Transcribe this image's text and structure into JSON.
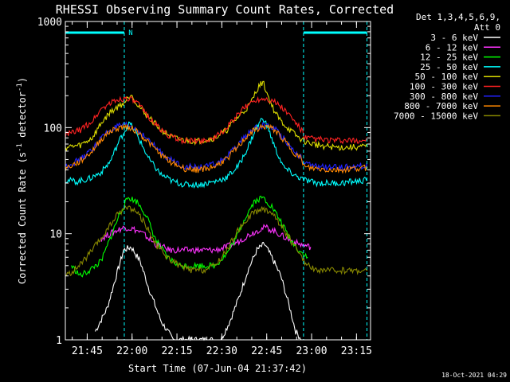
{
  "chart_data": {
    "type": "line",
    "title": "RHESSI Observing Summary Count Rates, Corrected",
    "xlabel": "Start Time (07-Jun-04 21:37:42)",
    "ylabel_parts": [
      "Corrected Count Rate (s",
      "-1",
      " detector",
      "-1",
      ")"
    ],
    "yscale": "log",
    "ylim": [
      1,
      1000
    ],
    "xlim_min": [
      0,
      102
    ],
    "x_ticks": [
      {
        "min": 7.3,
        "label": "21:45"
      },
      {
        "min": 22.3,
        "label": "22:00"
      },
      {
        "min": 37.3,
        "label": "22:15"
      },
      {
        "min": 52.3,
        "label": "22:30"
      },
      {
        "min": 67.3,
        "label": "22:45"
      },
      {
        "min": 82.3,
        "label": "23:00"
      },
      {
        "min": 97.3,
        "label": "23:15"
      }
    ],
    "y_ticks": [
      {
        "value": 1,
        "label": "1"
      },
      {
        "value": 10,
        "label": "10"
      },
      {
        "value": 100,
        "label": "100"
      },
      {
        "value": 1000,
        "label": "1000"
      }
    ],
    "legend_header": [
      "Det 1,3,4,5,6,9,",
      "Att 0"
    ],
    "legend_placement": "right",
    "timestamp": "18-Oct-2021 04:29",
    "flag_bars": [
      {
        "label": "",
        "start": 0,
        "end": 19.7
      },
      {
        "label": "N",
        "start": 19.7,
        "end": 19.7
      },
      {
        "label": "",
        "start": 79.6,
        "end": 100.8
      }
    ],
    "annotation_lines_min": [
      0,
      19.7,
      79.6,
      100.8
    ],
    "series": [
      {
        "name": "3 - 6 keV",
        "color": "#ffffff",
        "x": [
          10,
          14,
          17,
          19.5,
          22,
          25,
          28,
          32,
          36,
          40,
          44,
          48,
          52,
          55,
          58,
          61,
          64,
          66.5,
          69,
          72,
          75,
          77,
          79
        ],
        "values": [
          1.2,
          2.0,
          4.0,
          7.0,
          7.5,
          5.5,
          3.0,
          1.5,
          1.0,
          1.0,
          1.0,
          1.0,
          1.0,
          1.5,
          2.5,
          4.5,
          7.0,
          8.0,
          6.0,
          4.0,
          2.0,
          1.2,
          1.0
        ]
      },
      {
        "name": "6 - 12 keV",
        "color": "#ff33ff",
        "x": [
          12,
          15,
          18,
          20,
          23,
          26,
          30,
          35,
          40,
          45,
          50,
          54,
          58,
          62,
          65,
          67,
          70,
          74,
          78,
          82
        ],
        "values": [
          9.0,
          10.0,
          11.0,
          11.5,
          11.0,
          10.0,
          8.0,
          7.0,
          7.0,
          7.0,
          7.0,
          7.5,
          8.5,
          10.0,
          11.0,
          11.5,
          10.5,
          9.0,
          8.0,
          7.5
        ]
      },
      {
        "name": "12 - 25 keV",
        "color": "#00ff00",
        "x": [
          2,
          5,
          8,
          12,
          15,
          18,
          21,
          24,
          27,
          30,
          34,
          38,
          42,
          46,
          50,
          54,
          57,
          60,
          63,
          66,
          69,
          72,
          75,
          78,
          81
        ],
        "values": [
          5.0,
          4.0,
          4.5,
          5.5,
          9.0,
          15.0,
          22.0,
          20.0,
          15.0,
          9.0,
          6.0,
          5.0,
          5.0,
          5.0,
          5.0,
          6.5,
          9.0,
          14.0,
          20.0,
          22.0,
          18.0,
          13.0,
          9.0,
          7.0,
          6.0
        ]
      },
      {
        "name": "25 - 50 keV",
        "color": "#00ffff",
        "x": [
          0,
          4,
          8,
          12,
          15,
          18,
          20,
          21.5,
          24,
          28,
          32,
          36,
          40,
          45,
          50,
          54,
          58,
          61,
          63.5,
          66,
          68,
          70,
          73,
          77,
          80,
          84,
          88,
          92,
          96,
          101
        ],
        "values": [
          32.0,
          31.0,
          33.0,
          38.0,
          48.0,
          75.0,
          95.0,
          110.0,
          85.0,
          50.0,
          36.0,
          31.0,
          29.0,
          29.0,
          31.0,
          34.0,
          44.0,
          65.0,
          95.0,
          125.0,
          95.0,
          65.0,
          42.0,
          35.0,
          32.0,
          30.0,
          30.0,
          30.0,
          31.0,
          32.0
        ]
      },
      {
        "name": "50 - 100 keV",
        "color": "#dddd00",
        "x": [
          0,
          5,
          9,
          12,
          15,
          18,
          20,
          22,
          24,
          28,
          32,
          36,
          40,
          45,
          50,
          54,
          57,
          60,
          62,
          64,
          66,
          68,
          70,
          72,
          75,
          78,
          81,
          85,
          90,
          95,
          101
        ],
        "values": [
          65.0,
          68.0,
          80.0,
          110.0,
          140.0,
          160.0,
          175.0,
          210.0,
          165.0,
          125.0,
          95.0,
          80.0,
          75.0,
          75.0,
          80.0,
          95.0,
          120.0,
          145.0,
          170.0,
          230.0,
          270.0,
          190.0,
          140.0,
          115.0,
          95.0,
          80.0,
          72.0,
          68.0,
          65.0,
          65.0,
          66.0
        ]
      },
      {
        "name": "100 - 300 keV",
        "color": "#ff2222",
        "x": [
          0,
          5,
          9,
          12,
          15,
          18,
          21,
          24,
          28,
          32,
          36,
          40,
          45,
          50,
          54,
          58,
          61,
          64,
          67,
          70,
          73,
          76,
          79,
          80,
          84,
          88,
          92,
          96,
          101
        ],
        "values": [
          85.0,
          95.0,
          115.0,
          150.0,
          170.0,
          185.0,
          190.0,
          170.0,
          125.0,
          95.0,
          80.0,
          75.0,
          75.0,
          80.0,
          100.0,
          135.0,
          165.0,
          185.0,
          190.0,
          175.0,
          150.0,
          120.0,
          95.0,
          80.0,
          78.0,
          76.0,
          75.0,
          75.0,
          76.0
        ]
      },
      {
        "name": "300 - 800 keV",
        "color": "#2222ff",
        "x": [
          0,
          5,
          9,
          12,
          15,
          18,
          21,
          24,
          28,
          32,
          36,
          40,
          45,
          50,
          54,
          58,
          61,
          64,
          67,
          70,
          73,
          76,
          79,
          80,
          84,
          88,
          92,
          96,
          101
        ],
        "values": [
          43.0,
          50.0,
          62.0,
          80.0,
          95.0,
          103.0,
          105.0,
          95.0,
          75.0,
          58.0,
          48.0,
          43.0,
          42.0,
          45.0,
          53.0,
          70.0,
          88.0,
          100.0,
          106.0,
          98.0,
          80.0,
          62.0,
          52.0,
          45.0,
          43.0,
          42.0,
          42.0,
          43.0,
          44.0
        ]
      },
      {
        "name": "800 - 7000 keV",
        "color": "#ff8800",
        "x": [
          0,
          5,
          9,
          12,
          15,
          18,
          21,
          24,
          28,
          32,
          36,
          40,
          45,
          50,
          54,
          58,
          61,
          64,
          67,
          70,
          73,
          76,
          79,
          80,
          84,
          88,
          92,
          96,
          101
        ],
        "values": [
          41.0,
          48.0,
          60.0,
          78.0,
          92.0,
          100.0,
          102.0,
          92.0,
          72.0,
          55.0,
          46.0,
          41.0,
          40.0,
          43.0,
          51.0,
          67.0,
          85.0,
          97.0,
          103.0,
          95.0,
          77.0,
          60.0,
          50.0,
          42.0,
          41.0,
          40.0,
          40.0,
          41.0,
          42.0
        ]
      },
      {
        "name": "7000 - 15000 keV",
        "color": "#888800",
        "x": [
          0,
          3,
          6,
          9,
          12,
          15,
          18,
          21,
          24,
          27,
          30,
          34,
          38,
          42,
          46,
          50,
          54,
          57,
          60,
          63,
          66,
          69,
          72,
          75,
          78,
          81,
          85,
          90,
          95,
          101
        ],
        "values": [
          4.0,
          4.5,
          5.5,
          7.0,
          9.0,
          12.0,
          16.0,
          18.0,
          16.0,
          12.0,
          8.0,
          6.0,
          5.0,
          4.5,
          4.5,
          5.0,
          7.0,
          10.0,
          13.0,
          16.0,
          17.0,
          16.0,
          12.0,
          9.0,
          6.5,
          5.0,
          4.5,
          4.5,
          4.5,
          4.5
        ]
      }
    ]
  }
}
